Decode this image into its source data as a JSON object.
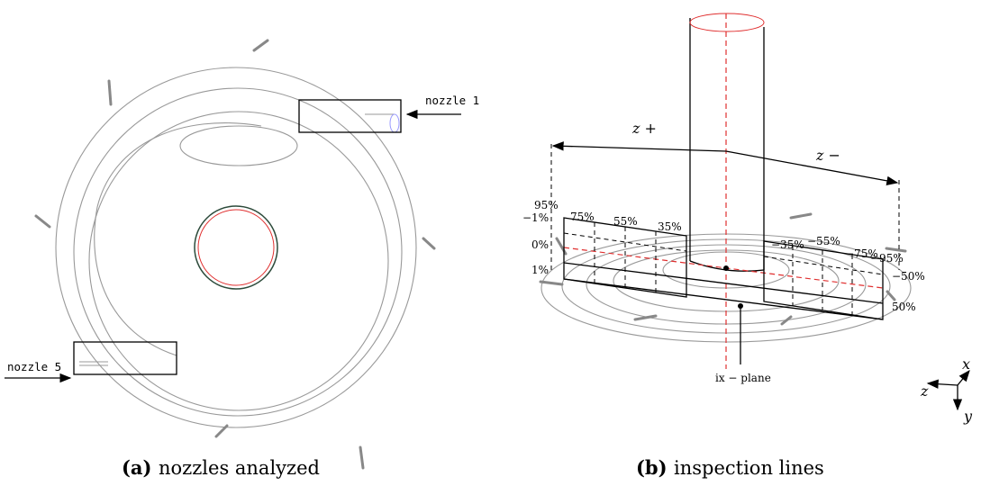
{
  "panels": [
    {
      "caption_label": "(a)",
      "caption": "nozzles analyzed",
      "annotations": [
        "nozzle 1",
        "nozzle 5"
      ]
    },
    {
      "caption_label": "(b)",
      "caption": "inspection lines",
      "dimension_labels": [
        "z +",
        "z −"
      ],
      "z_labels": [
        "95%",
        "75%",
        "55%",
        "35%",
        "−35%",
        "−55%",
        "−75%",
        "−95%"
      ],
      "y_labels": [
        "−1%",
        "0%",
        "1%"
      ],
      "x_labels": [
        "−50%",
        "50%"
      ],
      "plane_label": "ix − plane",
      "axes": [
        "x",
        "z",
        "y"
      ]
    }
  ]
}
